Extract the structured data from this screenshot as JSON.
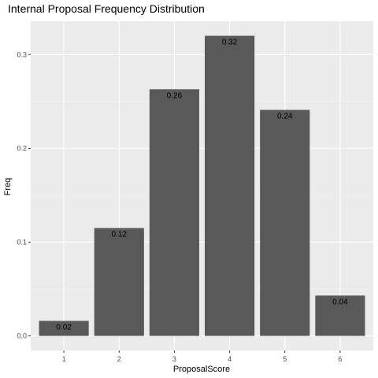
{
  "chart_data": {
    "type": "bar",
    "title": "Internal Proposal Frequency Distribution",
    "xlabel": "ProposalScore",
    "ylabel": "Freq",
    "categories": [
      "1",
      "2",
      "3",
      "4",
      "5",
      "6"
    ],
    "values": [
      0.016,
      0.115,
      0.263,
      0.32,
      0.241,
      0.043
    ],
    "data_labels": [
      "0.02",
      "0.12",
      "0.26",
      "0.32",
      "0.24",
      "0.04"
    ],
    "yticks": [
      0.0,
      0.1,
      0.2,
      0.3
    ],
    "ytick_labels": [
      "0.0",
      "0.1",
      "0.2",
      "0.3"
    ],
    "ylim": [
      -0.0155,
      0.3355
    ],
    "grid": true,
    "legend": "none",
    "colors": {
      "panel_background": "#ebebeb",
      "grid_major": "#ffffff",
      "grid_minor": "#f5f5f5",
      "bar_fill": "#595959",
      "tick_label": "#4d4d4d",
      "tick_mark": "#333333",
      "text": "#000000"
    }
  }
}
